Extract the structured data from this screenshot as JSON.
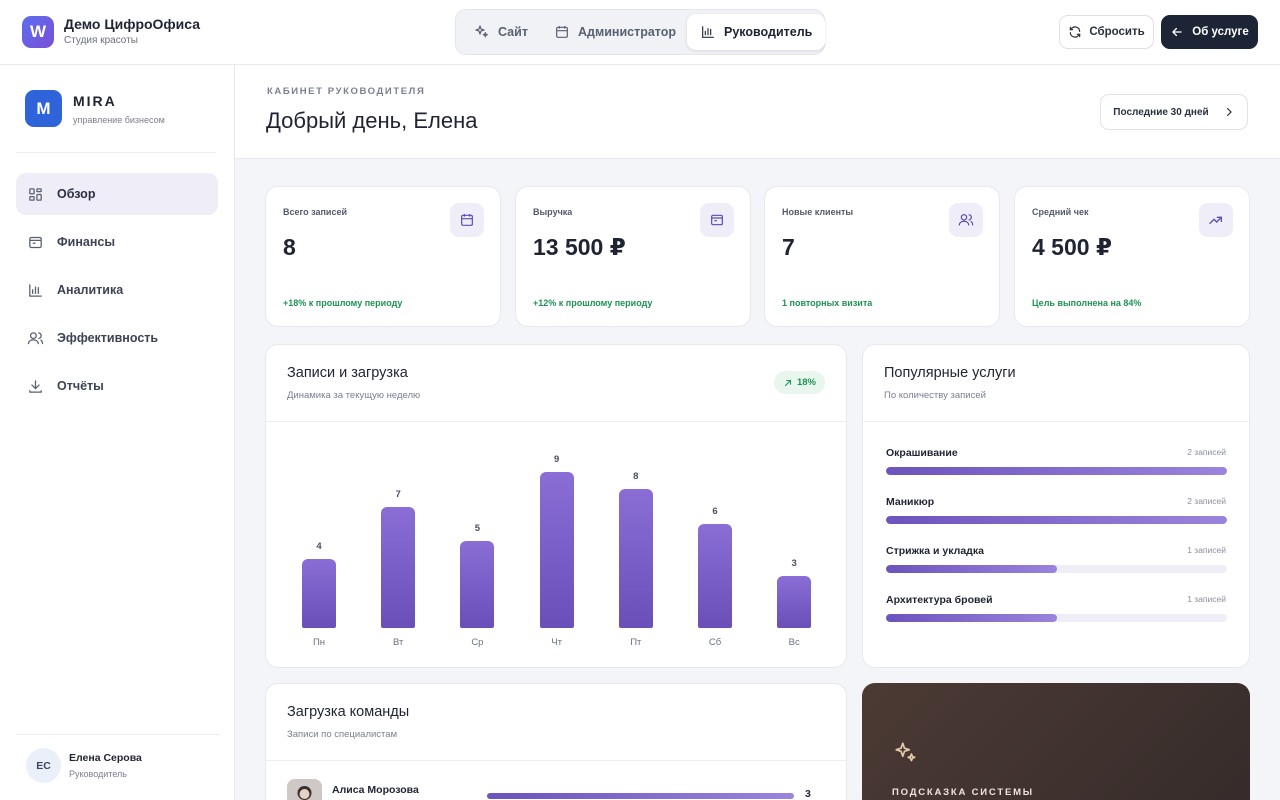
{
  "brand": {
    "logo_letter": "W",
    "name": "Демо ЦифроОфиса",
    "subtitle": "Студия красоты"
  },
  "mode_switch": [
    {
      "label": "Сайт",
      "icon": "sparkles-icon",
      "active": false
    },
    {
      "label": "Администратор",
      "icon": "calendar-icon",
      "active": false
    },
    {
      "label": "Руководитель",
      "icon": "bar-chart-icon",
      "active": true
    }
  ],
  "topbar": {
    "reset_label": "Сбросить",
    "about_label": "Об услуге"
  },
  "sidebar": {
    "logo_letter": "M",
    "name": "MIRA",
    "subtitle": "управление бизнесом",
    "items": [
      {
        "label": "Обзор",
        "icon": "dashboard-icon",
        "active": true
      },
      {
        "label": "Финансы",
        "icon": "wallet-icon",
        "active": false
      },
      {
        "label": "Аналитика",
        "icon": "bar-chart-icon",
        "active": false
      },
      {
        "label": "Эффективность",
        "icon": "users-icon",
        "active": false
      },
      {
        "label": "Отчёты",
        "icon": "download-icon",
        "active": false
      }
    ],
    "user": {
      "initials": "ЕС",
      "name": "Елена Серова",
      "role": "Руководитель"
    }
  },
  "header": {
    "eyebrow": "КАБИНЕТ РУКОВОДИТЕЛЯ",
    "greeting": "Добрый день, Елена",
    "period": "Последние 30 дней"
  },
  "stats": [
    {
      "label": "Всего записей",
      "value": "8",
      "note": "+18% к прошлому периоду",
      "icon": "calendar-icon"
    },
    {
      "label": "Выручка",
      "value": "13 500 ₽",
      "note": "+12% к прошлому периоду",
      "icon": "wallet-icon"
    },
    {
      "label": "Новые клиенты",
      "value": "7",
      "note": "1 повторных визита",
      "icon": "users-icon"
    },
    {
      "label": "Средний чек",
      "value": "4 500 ₽",
      "note": "Цель выполнена на 84%",
      "icon": "trending-up-icon"
    }
  ],
  "bookings": {
    "title": "Записи и загрузка",
    "subtitle": "Динамика за текущую неделю",
    "badge": "18%"
  },
  "chart_data": {
    "type": "bar",
    "categories": [
      "Пн",
      "Вт",
      "Ср",
      "Чт",
      "Пт",
      "Сб",
      "Вс"
    ],
    "values": [
      4,
      7,
      5,
      9,
      8,
      6,
      3
    ],
    "title": "Записи и загрузка",
    "subtitle": "Динамика за текущую неделю",
    "ylim": [
      0,
      9
    ],
    "grid": false,
    "data_labels": true
  },
  "services": {
    "title": "Популярные услуги",
    "subtitle": "По количеству записей",
    "items": [
      {
        "name": "Окрашивание",
        "count": "2 записей",
        "share": 1.0
      },
      {
        "name": "Маникюр",
        "count": "2 записей",
        "share": 1.0
      },
      {
        "name": "Стрижка и укладка",
        "count": "1 записей",
        "share": 0.5
      },
      {
        "name": "Архитектура бровей",
        "count": "1 записей",
        "share": 0.5
      }
    ]
  },
  "team": {
    "title": "Загрузка команды",
    "subtitle": "Записи по специалистам",
    "members": [
      {
        "name": "Алиса Морозова",
        "value": "3",
        "share": 1.0
      }
    ]
  },
  "hint": {
    "title": "ПОДСКАЗКА СИСТЕМЫ"
  },
  "colors": {
    "accent": "#6a4fb9",
    "positive": "#1f9254",
    "dark": "#1c2436"
  }
}
